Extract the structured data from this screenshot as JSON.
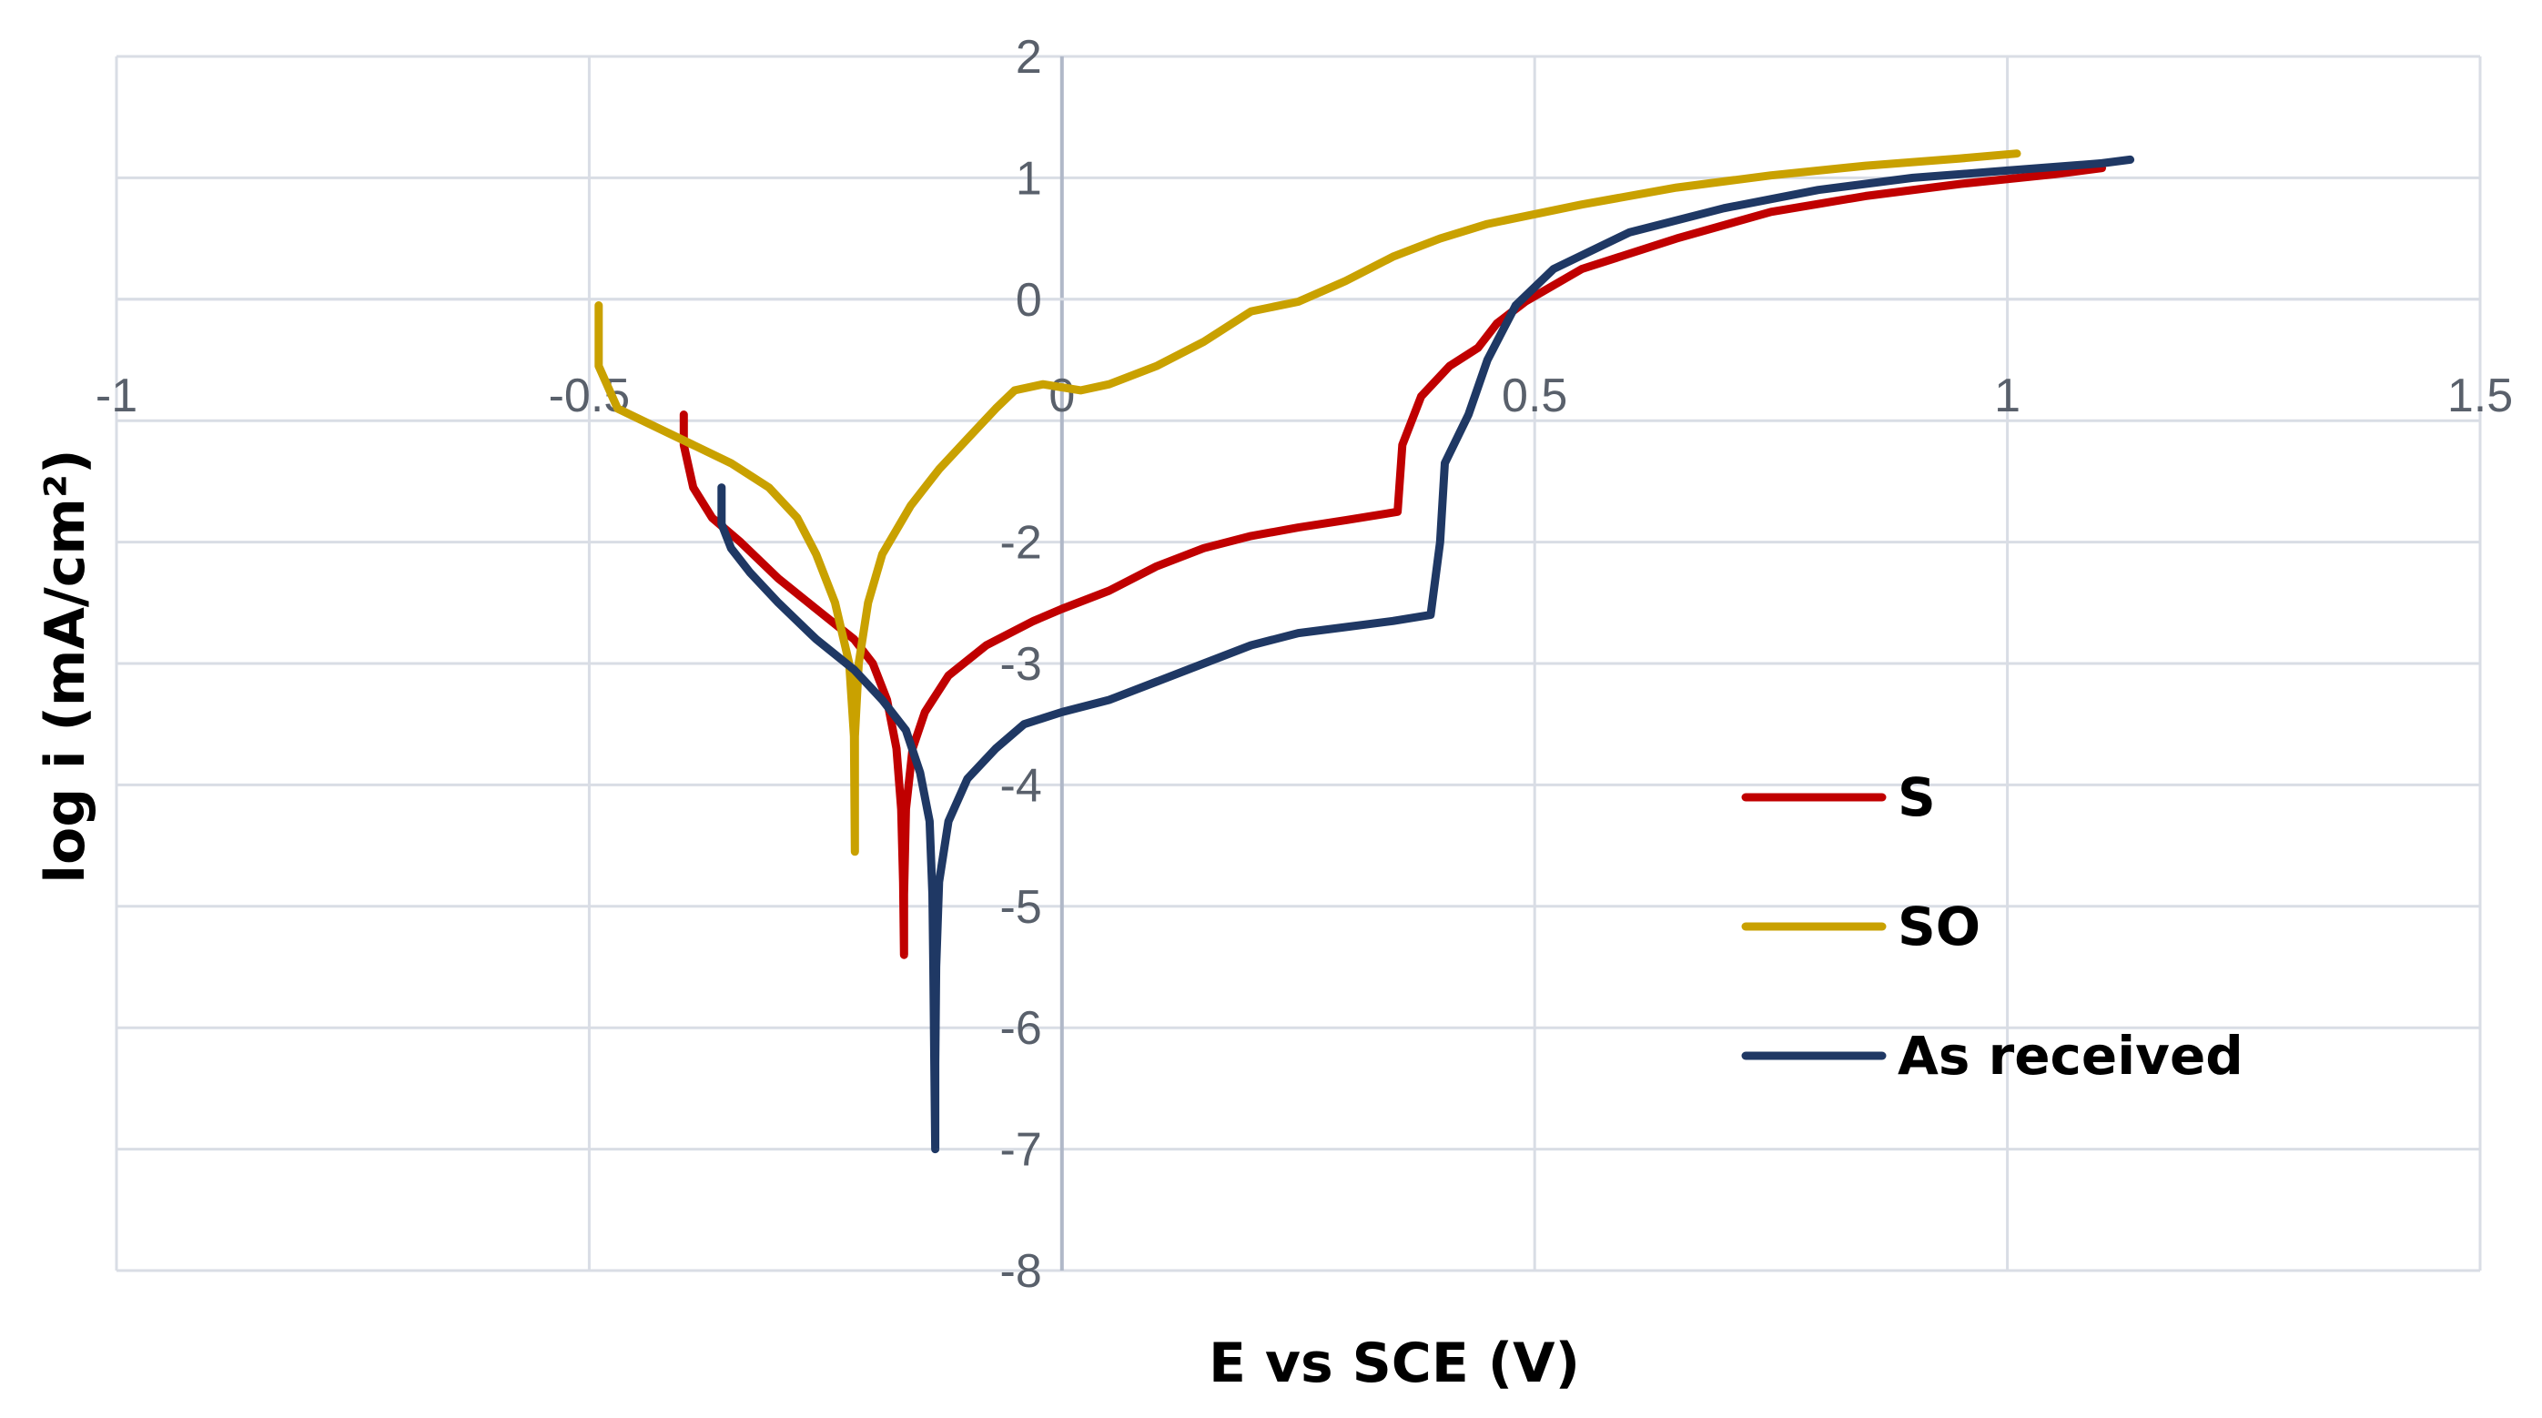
{
  "chart_data": {
    "type": "line",
    "xlabel": "E vs SCE (V)",
    "ylabel": "log i (mA/cm²)",
    "xlim": [
      -1,
      1.5
    ],
    "ylim": [
      -8,
      2
    ],
    "x_ticks": [
      -1,
      -0.5,
      0,
      0.5,
      1,
      1.5
    ],
    "x_tick_labels": [
      "-1",
      "-0.5",
      "0",
      "0.5",
      "1",
      "1.5"
    ],
    "y_ticks": [
      2,
      1,
      0,
      -1,
      -2,
      -3,
      -4,
      -5,
      -6,
      -7,
      -8
    ],
    "y_tick_labels": [
      "2",
      "1",
      "0",
      "",
      "-2",
      "-3",
      "-4",
      "-5",
      "-6",
      "-7",
      "-8"
    ],
    "grid": true,
    "legend_position": "center-right",
    "series": [
      {
        "name": "S",
        "color": "#c00000",
        "points": [
          [
            -0.4,
            -0.95
          ],
          [
            -0.4,
            -1.2
          ],
          [
            -0.39,
            -1.55
          ],
          [
            -0.37,
            -1.8
          ],
          [
            -0.34,
            -2.0
          ],
          [
            -0.3,
            -2.3
          ],
          [
            -0.26,
            -2.55
          ],
          [
            -0.22,
            -2.8
          ],
          [
            -0.2,
            -3.0
          ],
          [
            -0.185,
            -3.3
          ],
          [
            -0.175,
            -3.7
          ],
          [
            -0.17,
            -4.2
          ],
          [
            -0.168,
            -4.8
          ],
          [
            -0.167,
            -5.4
          ],
          [
            -0.167,
            -4.9
          ],
          [
            -0.165,
            -4.2
          ],
          [
            -0.158,
            -3.7
          ],
          [
            -0.145,
            -3.4
          ],
          [
            -0.12,
            -3.1
          ],
          [
            -0.08,
            -2.85
          ],
          [
            -0.03,
            -2.65
          ],
          [
            0.0,
            -2.55
          ],
          [
            0.05,
            -2.4
          ],
          [
            0.1,
            -2.2
          ],
          [
            0.15,
            -2.05
          ],
          [
            0.2,
            -1.95
          ],
          [
            0.25,
            -1.88
          ],
          [
            0.3,
            -1.82
          ],
          [
            0.355,
            -1.75
          ],
          [
            0.36,
            -1.2
          ],
          [
            0.38,
            -0.8
          ],
          [
            0.41,
            -0.55
          ],
          [
            0.44,
            -0.4
          ],
          [
            0.46,
            -0.2
          ],
          [
            0.49,
            -0.02
          ],
          [
            0.55,
            0.25
          ],
          [
            0.65,
            0.5
          ],
          [
            0.75,
            0.72
          ],
          [
            0.85,
            0.85
          ],
          [
            0.95,
            0.95
          ],
          [
            1.05,
            1.03
          ],
          [
            1.1,
            1.08
          ]
        ]
      },
      {
        "name": "SO",
        "color": "#c9a100",
        "points": [
          [
            -0.49,
            -0.05
          ],
          [
            -0.49,
            -0.55
          ],
          [
            -0.47,
            -0.9
          ],
          [
            -0.43,
            -1.05
          ],
          [
            -0.39,
            -1.2
          ],
          [
            -0.35,
            -1.35
          ],
          [
            -0.31,
            -1.55
          ],
          [
            -0.28,
            -1.8
          ],
          [
            -0.26,
            -2.1
          ],
          [
            -0.24,
            -2.5
          ],
          [
            -0.225,
            -3.0
          ],
          [
            -0.22,
            -3.6
          ],
          [
            -0.219,
            -4.55
          ],
          [
            -0.219,
            -3.6
          ],
          [
            -0.215,
            -3.0
          ],
          [
            -0.205,
            -2.5
          ],
          [
            -0.19,
            -2.1
          ],
          [
            -0.16,
            -1.7
          ],
          [
            -0.13,
            -1.4
          ],
          [
            -0.1,
            -1.15
          ],
          [
            -0.07,
            -0.9
          ],
          [
            -0.05,
            -0.75
          ],
          [
            -0.02,
            -0.7
          ],
          [
            0.02,
            -0.75
          ],
          [
            0.05,
            -0.7
          ],
          [
            0.1,
            -0.55
          ],
          [
            0.15,
            -0.35
          ],
          [
            0.2,
            -0.1
          ],
          [
            0.25,
            -0.02
          ],
          [
            0.3,
            0.15
          ],
          [
            0.35,
            0.35
          ],
          [
            0.4,
            0.5
          ],
          [
            0.45,
            0.62
          ],
          [
            0.55,
            0.78
          ],
          [
            0.65,
            0.92
          ],
          [
            0.75,
            1.02
          ],
          [
            0.85,
            1.1
          ],
          [
            0.95,
            1.16
          ],
          [
            1.01,
            1.2
          ]
        ]
      },
      {
        "name": "As received",
        "color": "#1f3864",
        "points": [
          [
            -0.36,
            -1.55
          ],
          [
            -0.36,
            -1.85
          ],
          [
            -0.35,
            -2.05
          ],
          [
            -0.33,
            -2.25
          ],
          [
            -0.3,
            -2.5
          ],
          [
            -0.26,
            -2.8
          ],
          [
            -0.22,
            -3.05
          ],
          [
            -0.19,
            -3.3
          ],
          [
            -0.165,
            -3.55
          ],
          [
            -0.15,
            -3.9
          ],
          [
            -0.14,
            -4.3
          ],
          [
            -0.137,
            -4.9
          ],
          [
            -0.136,
            -5.5
          ],
          [
            -0.135,
            -6.3
          ],
          [
            -0.134,
            -7.0
          ],
          [
            -0.134,
            -6.3
          ],
          [
            -0.133,
            -5.5
          ],
          [
            -0.13,
            -4.8
          ],
          [
            -0.12,
            -4.3
          ],
          [
            -0.1,
            -3.95
          ],
          [
            -0.07,
            -3.7
          ],
          [
            -0.04,
            -3.5
          ],
          [
            0.0,
            -3.4
          ],
          [
            0.05,
            -3.3
          ],
          [
            0.1,
            -3.15
          ],
          [
            0.15,
            -3.0
          ],
          [
            0.2,
            -2.85
          ],
          [
            0.25,
            -2.75
          ],
          [
            0.3,
            -2.7
          ],
          [
            0.35,
            -2.65
          ],
          [
            0.39,
            -2.6
          ],
          [
            0.4,
            -2.0
          ],
          [
            0.405,
            -1.35
          ],
          [
            0.43,
            -0.95
          ],
          [
            0.45,
            -0.5
          ],
          [
            0.48,
            -0.05
          ],
          [
            0.52,
            0.25
          ],
          [
            0.6,
            0.55
          ],
          [
            0.7,
            0.75
          ],
          [
            0.8,
            0.9
          ],
          [
            0.9,
            1.0
          ],
          [
            1.0,
            1.06
          ],
          [
            1.1,
            1.12
          ],
          [
            1.13,
            1.15
          ]
        ]
      }
    ]
  }
}
